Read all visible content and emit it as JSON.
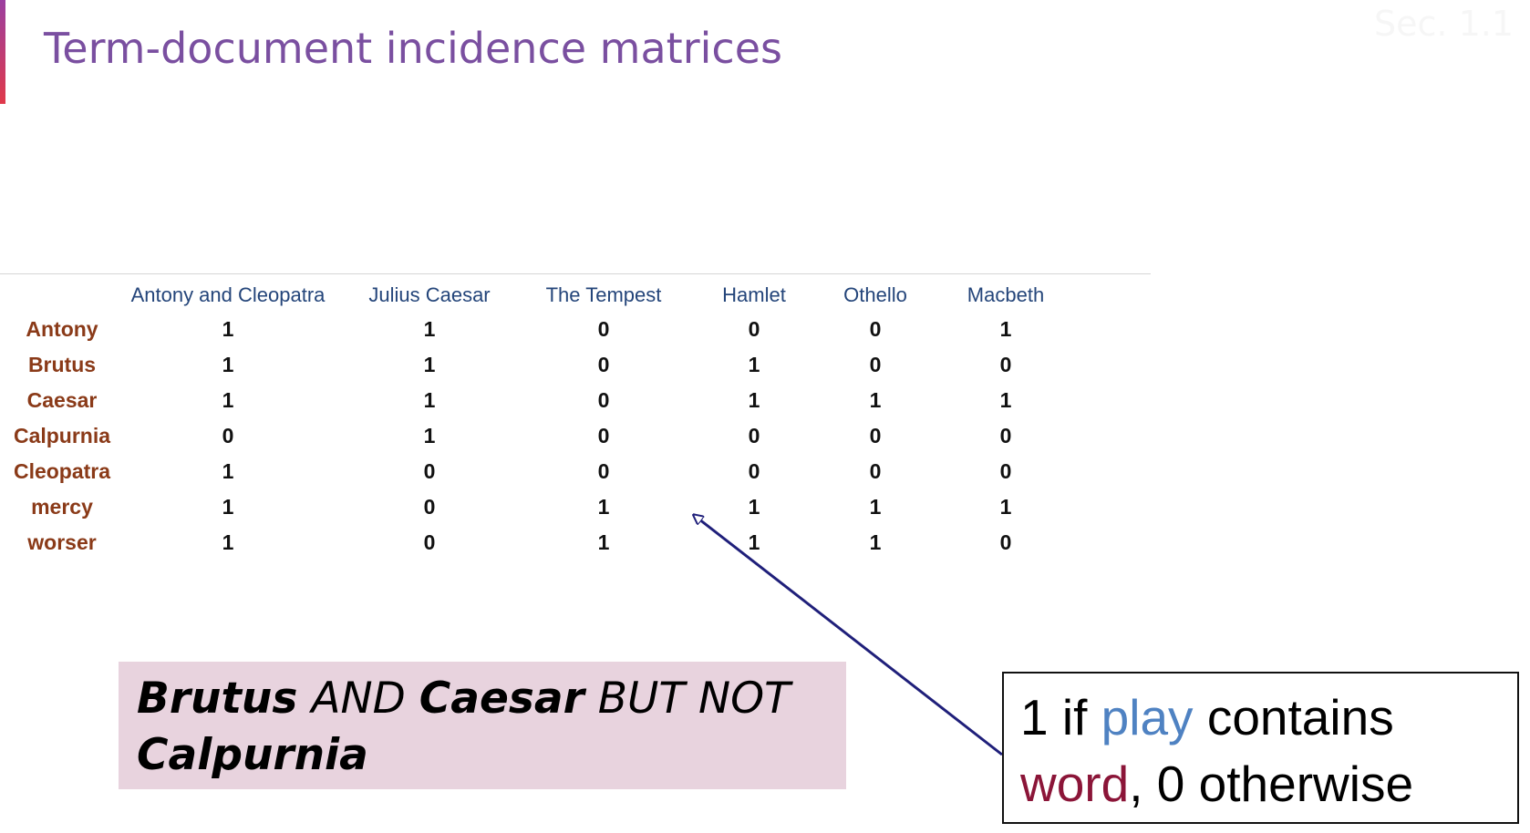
{
  "slide": {
    "title": "Term-document incidence matrices",
    "corner_mark": "Sec. 1.1"
  },
  "matrix": {
    "columns": [
      "Antony and Cleopatra",
      "Julius Caesar",
      "The Tempest",
      "Hamlet",
      "Othello",
      "Macbeth"
    ],
    "rows": [
      {
        "term": "Antony",
        "values": [
          "1",
          "1",
          "0",
          "0",
          "0",
          "1"
        ]
      },
      {
        "term": "Brutus",
        "values": [
          "1",
          "1",
          "0",
          "1",
          "0",
          "0"
        ]
      },
      {
        "term": "Caesar",
        "values": [
          "1",
          "1",
          "0",
          "1",
          "1",
          "1"
        ]
      },
      {
        "term": "Calpurnia",
        "values": [
          "0",
          "1",
          "0",
          "0",
          "0",
          "0"
        ]
      },
      {
        "term": "Cleopatra",
        "values": [
          "1",
          "0",
          "0",
          "0",
          "0",
          "0"
        ]
      },
      {
        "term": "mercy",
        "values": [
          "1",
          "0",
          "1",
          "1",
          "1",
          "1"
        ]
      },
      {
        "term": "worser",
        "values": [
          "1",
          "0",
          "1",
          "1",
          "1",
          "0"
        ]
      }
    ]
  },
  "query": {
    "term1": "Brutus",
    "op1": "AND",
    "term2": "Caesar",
    "op2": "BUT NOT",
    "term3": "Calpurnia"
  },
  "callout": {
    "part1": "1 if ",
    "play": "play",
    "part2": " contains",
    "word": "word",
    "part3": ", 0 otherwise"
  },
  "colors": {
    "title": "#7a4fa0",
    "column_header": "#24457a",
    "row_term": "#8a3a18",
    "query_background": "#e8d3de",
    "keyword_play": "#4f82c2",
    "keyword_word": "#8b1538",
    "arrow": "#1f1f7a"
  }
}
